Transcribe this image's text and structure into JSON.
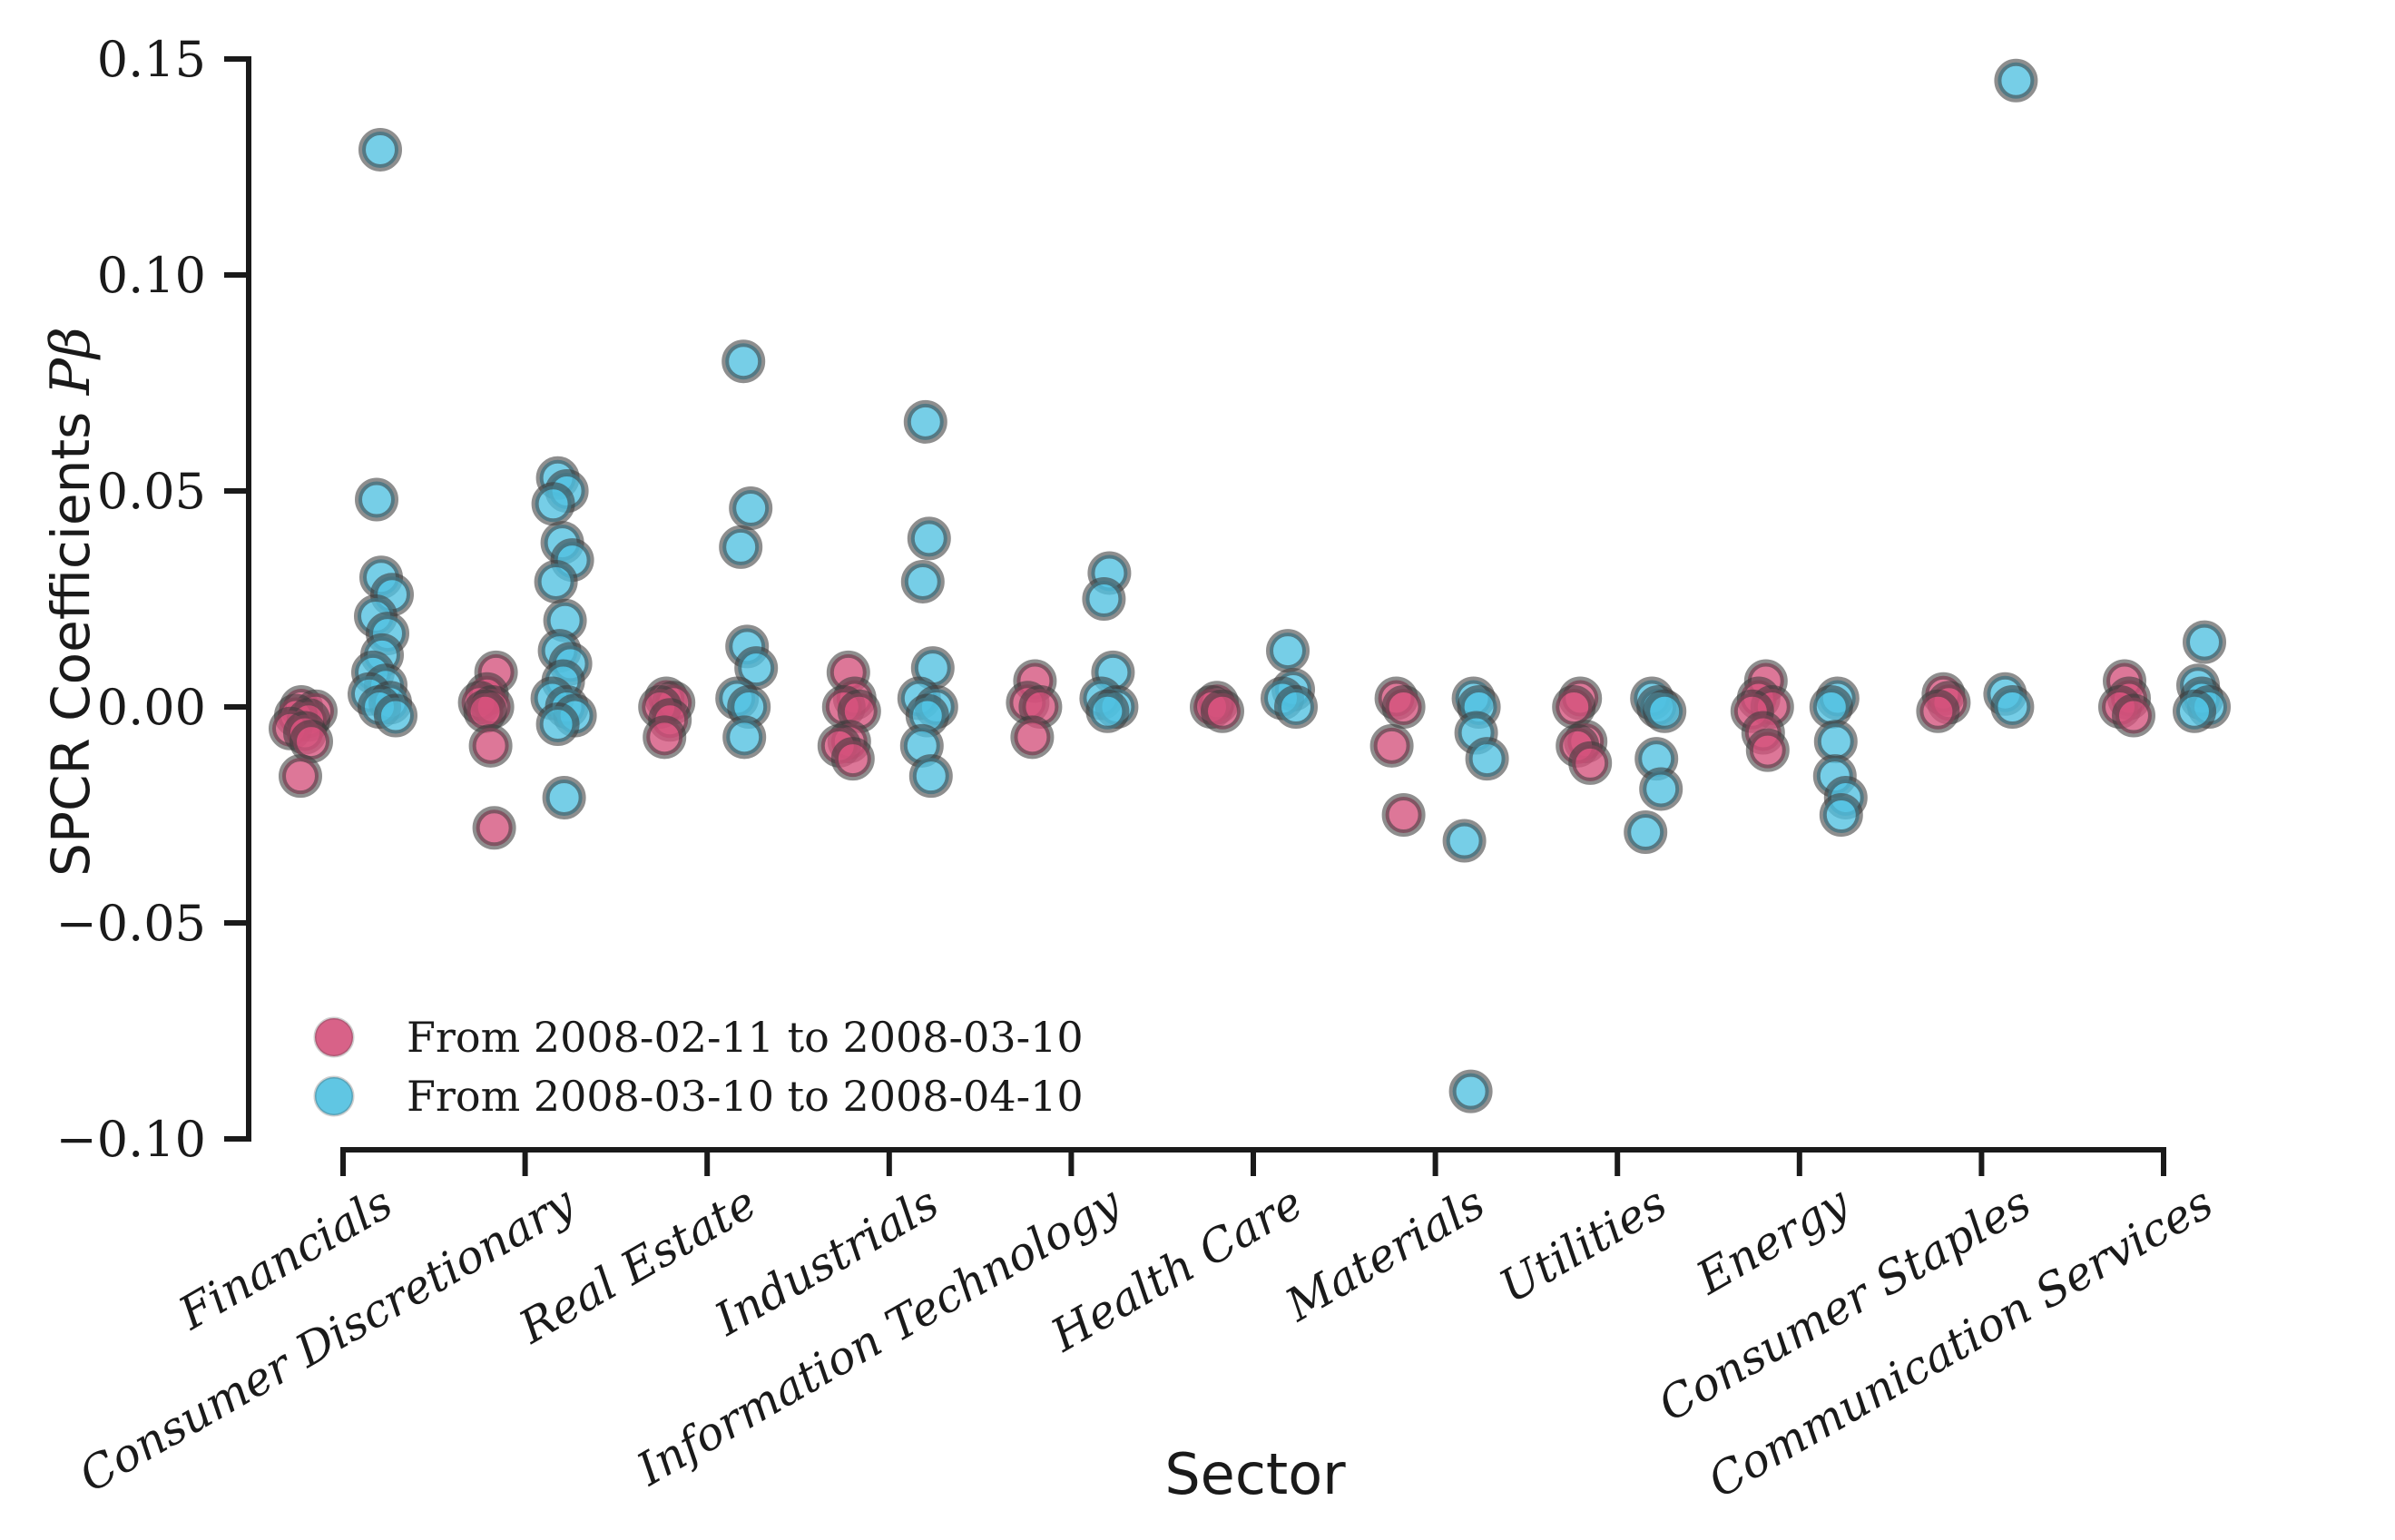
{
  "chart_data": {
    "type": "scatter",
    "title": "",
    "xlabel": "Sector",
    "ylabel_prefix": "SPCR Coefficients",
    "ylabel_math": "Pβ",
    "grid": false,
    "legend_position": "lower left",
    "ylim": [
      -0.105,
      0.155
    ],
    "yticks": [
      "0.15",
      "0.10",
      "0.05",
      "0.00",
      "−0.05",
      "−0.10"
    ],
    "ytick_values": [
      0.15,
      0.1,
      0.05,
      0.0,
      -0.05,
      -0.1
    ],
    "categories": [
      "Financials",
      "Consumer Discretionary",
      "Real Estate",
      "Industrials",
      "Information Technology",
      "Health Care",
      "Materials",
      "Utilities",
      "Energy",
      "Consumer Staples",
      "Communication Services"
    ],
    "marker": {
      "radius": 20,
      "stroke_width": 8,
      "edge_color": "#3c3c3c",
      "edge_opacity": 0.58,
      "fill_opacity": 0.78
    },
    "text_color": "#1a1a1a",
    "series": [
      {
        "name": "From 2008-02-11 to 2008-03-10",
        "color": "#d4517b",
        "points": [
          {
            "sector": 0,
            "dx": -46,
            "y": 0.0
          },
          {
            "sector": 0,
            "dx": -30,
            "y": -0.001
          },
          {
            "sector": 0,
            "dx": -52,
            "y": -0.002
          },
          {
            "sector": 0,
            "dx": -38,
            "y": -0.003
          },
          {
            "sector": 0,
            "dx": -58,
            "y": -0.005
          },
          {
            "sector": 0,
            "dx": -42,
            "y": -0.006
          },
          {
            "sector": 0,
            "dx": -35,
            "y": -0.008
          },
          {
            "sector": 0,
            "dx": -47,
            "y": -0.016
          },
          {
            "sector": 1,
            "dx": -32,
            "y": 0.008
          },
          {
            "sector": 1,
            "dx": -42,
            "y": 0.003
          },
          {
            "sector": 1,
            "dx": -50,
            "y": 0.001
          },
          {
            "sector": 1,
            "dx": -36,
            "y": 0.0
          },
          {
            "sector": 1,
            "dx": -44,
            "y": -0.001
          },
          {
            "sector": 1,
            "dx": -38,
            "y": -0.009
          },
          {
            "sector": 1,
            "dx": -34,
            "y": -0.028
          },
          {
            "sector": 2,
            "dx": -45,
            "y": 0.002
          },
          {
            "sector": 2,
            "dx": -37,
            "y": 0.001
          },
          {
            "sector": 2,
            "dx": -52,
            "y": 0.0
          },
          {
            "sector": 2,
            "dx": -41,
            "y": -0.003
          },
          {
            "sector": 2,
            "dx": -47,
            "y": -0.007
          },
          {
            "sector": 3,
            "dx": -45,
            "y": 0.008
          },
          {
            "sector": 3,
            "dx": -38,
            "y": 0.002
          },
          {
            "sector": 3,
            "dx": -50,
            "y": 0.0
          },
          {
            "sector": 3,
            "dx": -33,
            "y": -0.001
          },
          {
            "sector": 3,
            "dx": -44,
            "y": -0.008
          },
          {
            "sector": 3,
            "dx": -55,
            "y": -0.009
          },
          {
            "sector": 3,
            "dx": -40,
            "y": -0.012
          },
          {
            "sector": 4,
            "dx": -40,
            "y": 0.006
          },
          {
            "sector": 4,
            "dx": -48,
            "y": 0.001
          },
          {
            "sector": 4,
            "dx": -34,
            "y": 0.0
          },
          {
            "sector": 4,
            "dx": -43,
            "y": -0.007
          },
          {
            "sector": 5,
            "dx": -40,
            "y": 0.001
          },
          {
            "sector": 5,
            "dx": -46,
            "y": 0.0
          },
          {
            "sector": 5,
            "dx": -34,
            "y": -0.001
          },
          {
            "sector": 6,
            "dx": -43,
            "y": 0.002
          },
          {
            "sector": 6,
            "dx": -35,
            "y": 0.0
          },
          {
            "sector": 6,
            "dx": -48,
            "y": -0.009
          },
          {
            "sector": 6,
            "dx": -35,
            "y": -0.025
          },
          {
            "sector": 7,
            "dx": -41,
            "y": 0.002
          },
          {
            "sector": 7,
            "dx": -48,
            "y": 0.0
          },
          {
            "sector": 7,
            "dx": -35,
            "y": -0.008
          },
          {
            "sector": 7,
            "dx": -44,
            "y": -0.009
          },
          {
            "sector": 7,
            "dx": -30,
            "y": -0.013
          },
          {
            "sector": 8,
            "dx": -37,
            "y": 0.006
          },
          {
            "sector": 8,
            "dx": -45,
            "y": 0.002
          },
          {
            "sector": 8,
            "dx": -30,
            "y": 0.0
          },
          {
            "sector": 8,
            "dx": -52,
            "y": -0.001
          },
          {
            "sector": 8,
            "dx": -40,
            "y": -0.006
          },
          {
            "sector": 8,
            "dx": -35,
            "y": -0.01
          },
          {
            "sector": 9,
            "dx": -42,
            "y": 0.003
          },
          {
            "sector": 9,
            "dx": -36,
            "y": 0.001
          },
          {
            "sector": 9,
            "dx": -48,
            "y": -0.001
          },
          {
            "sector": 10,
            "dx": -43,
            "y": 0.006
          },
          {
            "sector": 10,
            "dx": -38,
            "y": 0.002
          },
          {
            "sector": 10,
            "dx": -48,
            "y": 0.0
          },
          {
            "sector": 10,
            "dx": -33,
            "y": -0.002
          }
        ]
      },
      {
        "name": "From 2008-03-10 to 2008-04-10",
        "color": "#4fc0e0",
        "points": [
          {
            "sector": 0,
            "dx": 41,
            "y": 0.129
          },
          {
            "sector": 0,
            "dx": 37,
            "y": 0.048
          },
          {
            "sector": 0,
            "dx": 42,
            "y": 0.03
          },
          {
            "sector": 0,
            "dx": 54,
            "y": 0.026
          },
          {
            "sector": 0,
            "dx": 36,
            "y": 0.021
          },
          {
            "sector": 0,
            "dx": 49,
            "y": 0.017
          },
          {
            "sector": 0,
            "dx": 43,
            "y": 0.012
          },
          {
            "sector": 0,
            "dx": 33,
            "y": 0.008
          },
          {
            "sector": 0,
            "dx": 47,
            "y": 0.005
          },
          {
            "sector": 0,
            "dx": 29,
            "y": 0.003
          },
          {
            "sector": 0,
            "dx": 52,
            "y": 0.001
          },
          {
            "sector": 0,
            "dx": 40,
            "y": 0.0
          },
          {
            "sector": 0,
            "dx": 58,
            "y": -0.002
          },
          {
            "sector": 1,
            "dx": 36,
            "y": 0.053
          },
          {
            "sector": 1,
            "dx": 46,
            "y": 0.05
          },
          {
            "sector": 1,
            "dx": 31,
            "y": 0.047
          },
          {
            "sector": 1,
            "dx": 41,
            "y": 0.038
          },
          {
            "sector": 1,
            "dx": 52,
            "y": 0.034
          },
          {
            "sector": 1,
            "dx": 34,
            "y": 0.029
          },
          {
            "sector": 1,
            "dx": 44,
            "y": 0.02
          },
          {
            "sector": 1,
            "dx": 38,
            "y": 0.013
          },
          {
            "sector": 1,
            "dx": 50,
            "y": 0.01
          },
          {
            "sector": 1,
            "dx": 42,
            "y": 0.006
          },
          {
            "sector": 1,
            "dx": 30,
            "y": 0.002
          },
          {
            "sector": 1,
            "dx": 46,
            "y": 0.0
          },
          {
            "sector": 1,
            "dx": 55,
            "y": -0.002
          },
          {
            "sector": 1,
            "dx": 36,
            "y": -0.004
          },
          {
            "sector": 1,
            "dx": 43,
            "y": -0.021
          },
          {
            "sector": 2,
            "dx": 40,
            "y": 0.08
          },
          {
            "sector": 2,
            "dx": 48,
            "y": 0.046
          },
          {
            "sector": 2,
            "dx": 37,
            "y": 0.037
          },
          {
            "sector": 2,
            "dx": 44,
            "y": 0.014
          },
          {
            "sector": 2,
            "dx": 54,
            "y": 0.009
          },
          {
            "sector": 2,
            "dx": 33,
            "y": 0.002
          },
          {
            "sector": 2,
            "dx": 46,
            "y": 0.0
          },
          {
            "sector": 2,
            "dx": 41,
            "y": -0.007
          },
          {
            "sector": 3,
            "dx": 40,
            "y": 0.066
          },
          {
            "sector": 3,
            "dx": 44,
            "y": 0.039
          },
          {
            "sector": 3,
            "dx": 37,
            "y": 0.029
          },
          {
            "sector": 3,
            "dx": 48,
            "y": 0.009
          },
          {
            "sector": 3,
            "dx": 33,
            "y": 0.002
          },
          {
            "sector": 3,
            "dx": 52,
            "y": 0.0
          },
          {
            "sector": 3,
            "dx": 42,
            "y": -0.002
          },
          {
            "sector": 3,
            "dx": 36,
            "y": -0.009
          },
          {
            "sector": 3,
            "dx": 46,
            "y": -0.016
          },
          {
            "sector": 4,
            "dx": 42,
            "y": 0.031
          },
          {
            "sector": 4,
            "dx": 36,
            "y": 0.025
          },
          {
            "sector": 4,
            "dx": 46,
            "y": 0.008
          },
          {
            "sector": 4,
            "dx": 33,
            "y": 0.002
          },
          {
            "sector": 4,
            "dx": 50,
            "y": 0.0
          },
          {
            "sector": 4,
            "dx": 40,
            "y": -0.001
          },
          {
            "sector": 5,
            "dx": 38,
            "y": 0.013
          },
          {
            "sector": 5,
            "dx": 44,
            "y": 0.004
          },
          {
            "sector": 5,
            "dx": 32,
            "y": 0.002
          },
          {
            "sector": 5,
            "dx": 47,
            "y": 0.0
          },
          {
            "sector": 6,
            "dx": 42,
            "y": 0.002
          },
          {
            "sector": 6,
            "dx": 48,
            "y": 0.0
          },
          {
            "sector": 6,
            "dx": 45,
            "y": -0.006
          },
          {
            "sector": 6,
            "dx": 57,
            "y": -0.012
          },
          {
            "sector": 6,
            "dx": 32,
            "y": -0.031
          },
          {
            "sector": 6,
            "dx": 39,
            "y": -0.089
          },
          {
            "sector": 7,
            "dx": 38,
            "y": 0.002
          },
          {
            "sector": 7,
            "dx": 45,
            "y": 0.0
          },
          {
            "sector": 7,
            "dx": 52,
            "y": -0.001
          },
          {
            "sector": 7,
            "dx": 43,
            "y": -0.012
          },
          {
            "sector": 7,
            "dx": 48,
            "y": -0.019
          },
          {
            "sector": 7,
            "dx": 31,
            "y": -0.029
          },
          {
            "sector": 8,
            "dx": 42,
            "y": 0.002
          },
          {
            "sector": 8,
            "dx": 35,
            "y": 0.0
          },
          {
            "sector": 8,
            "dx": 40,
            "y": -0.008
          },
          {
            "sector": 8,
            "dx": 39,
            "y": -0.016
          },
          {
            "sector": 8,
            "dx": 51,
            "y": -0.021
          },
          {
            "sector": 8,
            "dx": 46,
            "y": -0.025
          },
          {
            "sector": 9,
            "dx": 38,
            "y": 0.145
          },
          {
            "sector": 9,
            "dx": 26,
            "y": 0.003
          },
          {
            "sector": 9,
            "dx": 34,
            "y": 0.0
          },
          {
            "sector": 10,
            "dx": 45,
            "y": 0.015
          },
          {
            "sector": 10,
            "dx": 38,
            "y": 0.005
          },
          {
            "sector": 10,
            "dx": 42,
            "y": 0.002
          },
          {
            "sector": 10,
            "dx": 50,
            "y": 0.0
          },
          {
            "sector": 10,
            "dx": 34,
            "y": -0.001
          }
        ]
      }
    ]
  }
}
